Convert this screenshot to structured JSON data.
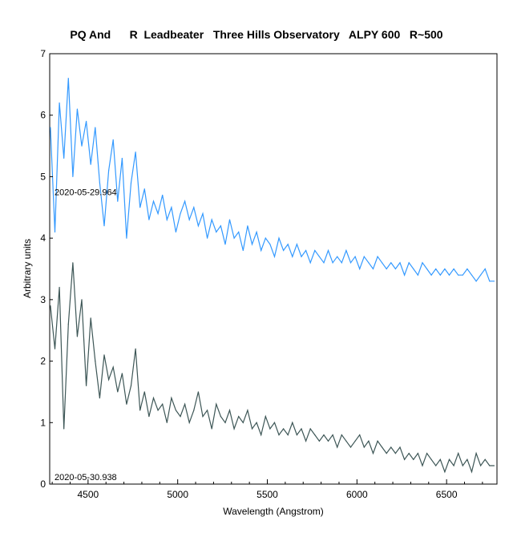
{
  "chart_data": {
    "type": "line",
    "title": "PQ And      R  Leadbeater   Three Hills Observatory   ALPY 600   R~500",
    "xlabel": "Wavelength (Angstrom)",
    "ylabel": "Arbitrary units",
    "xlim": [
      4286,
      6781
    ],
    "ylim": [
      0,
      7
    ],
    "xticks": [
      4500,
      5000,
      5500,
      6000,
      6500
    ],
    "yticks": [
      0,
      1,
      2,
      3,
      4,
      5,
      6,
      7
    ],
    "grid": false,
    "x_start": 4290,
    "x_step": 25,
    "series": [
      {
        "name": "2020-05-29.964",
        "color": "#3399ff",
        "label_y": 4.75,
        "values": [
          5.8,
          4.1,
          6.2,
          5.3,
          6.6,
          5.0,
          6.1,
          5.5,
          5.9,
          5.2,
          5.8,
          4.9,
          4.2,
          5.1,
          5.6,
          4.6,
          5.3,
          4.0,
          4.9,
          5.4,
          4.5,
          4.8,
          4.3,
          4.6,
          4.4,
          4.7,
          4.3,
          4.5,
          4.1,
          4.4,
          4.6,
          4.3,
          4.5,
          4.2,
          4.4,
          4.0,
          4.3,
          4.1,
          4.2,
          3.9,
          4.3,
          4.0,
          4.1,
          3.8,
          4.2,
          3.9,
          4.1,
          3.8,
          4.0,
          3.9,
          3.7,
          4.0,
          3.8,
          3.9,
          3.7,
          3.9,
          3.7,
          3.8,
          3.6,
          3.8,
          3.7,
          3.6,
          3.8,
          3.6,
          3.7,
          3.6,
          3.8,
          3.6,
          3.7,
          3.5,
          3.7,
          3.6,
          3.5,
          3.7,
          3.6,
          3.5,
          3.6,
          3.5,
          3.6,
          3.4,
          3.6,
          3.5,
          3.4,
          3.6,
          3.5,
          3.4,
          3.5,
          3.4,
          3.5,
          3.4,
          3.5,
          3.4,
          3.4,
          3.5,
          3.4,
          3.3,
          3.4,
          3.5,
          3.3,
          3.3
        ]
      },
      {
        "name": "2020-05-30.938",
        "color": "#3d5656",
        "label_y": 0.12,
        "values": [
          2.9,
          2.2,
          3.2,
          0.9,
          2.6,
          3.6,
          2.4,
          3.0,
          1.6,
          2.7,
          2.0,
          1.4,
          2.1,
          1.7,
          1.9,
          1.5,
          1.8,
          1.3,
          1.6,
          2.2,
          1.2,
          1.5,
          1.1,
          1.4,
          1.2,
          1.3,
          1.0,
          1.4,
          1.2,
          1.1,
          1.3,
          1.0,
          1.2,
          1.5,
          1.1,
          1.2,
          0.9,
          1.3,
          1.1,
          1.0,
          1.2,
          0.9,
          1.1,
          1.0,
          1.2,
          0.9,
          1.0,
          0.8,
          1.1,
          0.9,
          1.0,
          0.8,
          0.9,
          0.8,
          1.0,
          0.8,
          0.9,
          0.7,
          0.9,
          0.8,
          0.7,
          0.8,
          0.7,
          0.8,
          0.6,
          0.8,
          0.7,
          0.6,
          0.7,
          0.8,
          0.6,
          0.7,
          0.5,
          0.7,
          0.6,
          0.5,
          0.6,
          0.5,
          0.6,
          0.4,
          0.5,
          0.4,
          0.5,
          0.3,
          0.5,
          0.4,
          0.3,
          0.4,
          0.2,
          0.4,
          0.3,
          0.5,
          0.3,
          0.4,
          0.2,
          0.5,
          0.3,
          0.4,
          0.3,
          0.3
        ]
      }
    ]
  }
}
